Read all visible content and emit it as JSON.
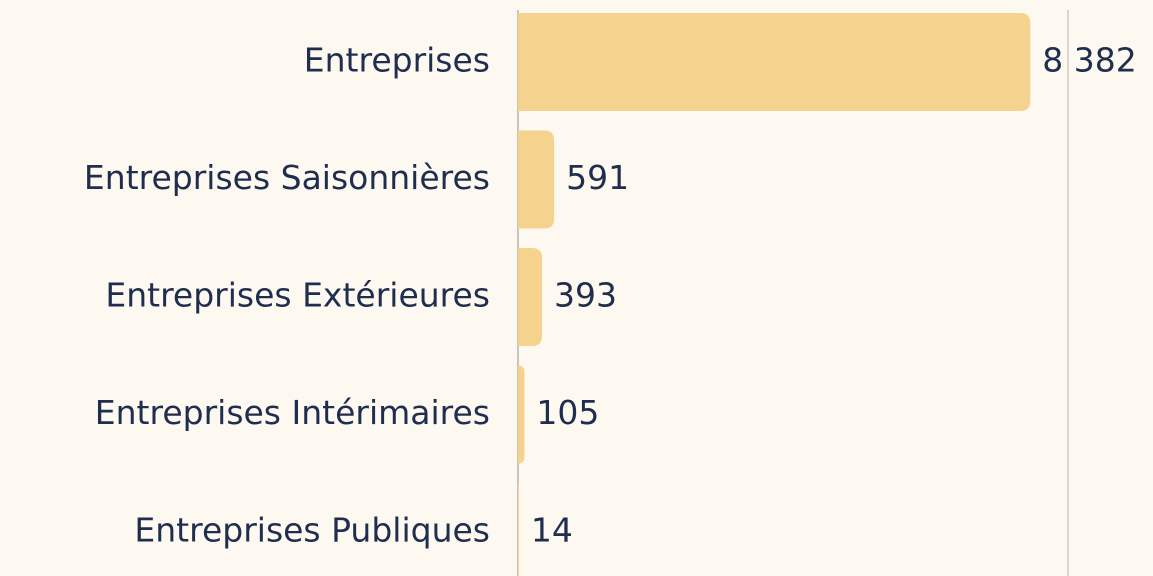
{
  "chart_data": {
    "type": "hbar",
    "categories": [
      "Entreprises",
      "Entreprises Saisonnières",
      "Entreprises Extérieures",
      "Entreprises Intérimaires",
      "Entreprises Publiques"
    ],
    "values": [
      8382,
      591,
      393,
      105,
      14
    ],
    "value_labels": [
      "8 382",
      "591",
      "393",
      "105",
      "14"
    ],
    "color": "#f5d28e",
    "xlim": [
      0,
      9000
    ]
  }
}
